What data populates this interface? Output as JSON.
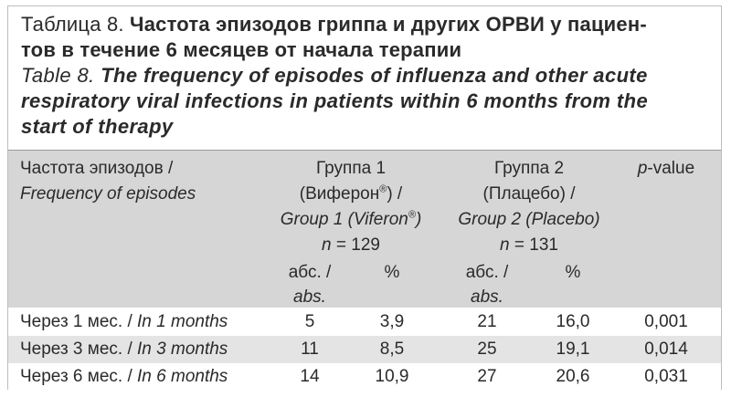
{
  "caption": {
    "ru_label": "Таблица 8.",
    "ru_title_line1": "Частота эпизодов гриппа и других ОРВИ у пациен-",
    "ru_title_line2": "тов в течение 6 месяцев от начала терапии",
    "en_label": "Table 8.",
    "en_title_line1": "The frequency of episodes of influenza and other acute",
    "en_title_line2": "respiratory viral infections in patients within 6 months from the",
    "en_title_line3": "start of therapy"
  },
  "header": {
    "col1_ru": "Частота эпизодов /",
    "col1_en": "Frequency of episodes",
    "group1_ru": "Группа 1",
    "group1_ru2_pre": "(Виферон",
    "group1_ru2_sup": "®",
    "group1_ru2_post": ") /",
    "group1_en_pre": "Group 1 (Viferon",
    "group1_en_sup": "®",
    "group1_en_post": ")",
    "group1_n_label": "n",
    "group1_n_value": " = 129",
    "group2_ru": "Группа 2",
    "group2_ru2": "(Плацебо) /",
    "group2_en": "Group 2 (Placebo)",
    "group2_n_label": "n",
    "group2_n_value": " = 131",
    "pvalue_label_italic": "p",
    "pvalue_label_rest": "-value",
    "abs_ru": "абс. /",
    "abs_en": "abs.",
    "percent": "%"
  },
  "rows": [
    {
      "label_ru": "Через 1 мес. / ",
      "label_en": "In 1 months",
      "g1_abs": "5",
      "g1_pct": "3,9",
      "g2_abs": "21",
      "g2_pct": "16,0",
      "p": "0,001"
    },
    {
      "label_ru": "Через 3 мес. / ",
      "label_en": "In 3 months",
      "g1_abs": "11",
      "g1_pct": "8,5",
      "g2_abs": "25",
      "g2_pct": "19,1",
      "p": "0,014"
    },
    {
      "label_ru": "Через 6 мес. / ",
      "label_en": "In 6 months",
      "g1_abs": "14",
      "g1_pct": "10,9",
      "g2_abs": "27",
      "g2_pct": "20,6",
      "p": "0,031"
    }
  ]
}
